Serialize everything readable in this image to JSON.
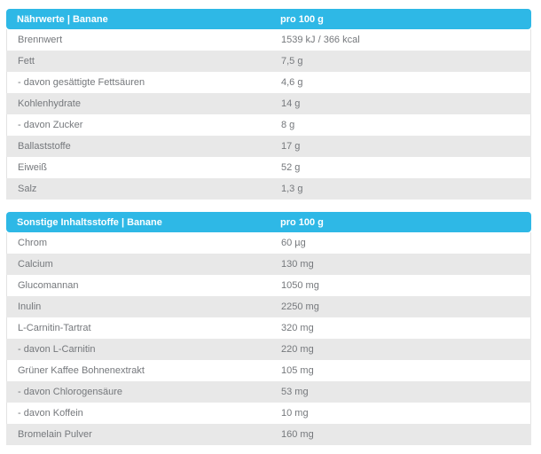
{
  "colors": {
    "header_bg": "#2eb8e6",
    "header_text": "#ffffff",
    "row_bg": "#ffffff",
    "row_alt_bg": "#e8e8e8",
    "row_border": "#e3e3e3",
    "text": "#75787c",
    "page_bg": "#ffffff"
  },
  "tables": [
    {
      "id": "naehrwerte",
      "title": "Nährwerte | Banane",
      "unit_header": "pro 100 g",
      "rows": [
        {
          "label": "Brennwert",
          "value": "1539 kJ / 366 kcal"
        },
        {
          "label": "Fett",
          "value": "7,5 g"
        },
        {
          "label": "- davon gesättigte Fettsäuren",
          "value": "4,6 g"
        },
        {
          "label": "Kohlenhydrate",
          "value": "14 g"
        },
        {
          "label": "- davon Zucker",
          "value": "8 g"
        },
        {
          "label": "Ballaststoffe",
          "value": "17 g"
        },
        {
          "label": "Eiweiß",
          "value": "52 g"
        },
        {
          "label": "Salz",
          "value": "1,3 g"
        }
      ]
    },
    {
      "id": "sonstige-inhaltsstoffe",
      "title": "Sonstige Inhaltsstoffe | Banane",
      "unit_header": "pro 100 g",
      "rows": [
        {
          "label": "Chrom",
          "value": "60 µg"
        },
        {
          "label": "Calcium",
          "value": "130 mg"
        },
        {
          "label": "Glucomannan",
          "value": "1050 mg"
        },
        {
          "label": "Inulin",
          "value": "2250 mg"
        },
        {
          "label": "L-Carnitin-Tartrat",
          "value": "320 mg"
        },
        {
          "label": "- davon L-Carnitin",
          "value": "220 mg"
        },
        {
          "label": "Grüner Kaffee Bohnenextrakt",
          "value": "105 mg"
        },
        {
          "label": "- davon Chlorogensäure",
          "value": "53 mg"
        },
        {
          "label": "- davon Koffein",
          "value": "10 mg"
        },
        {
          "label": "Bromelain Pulver",
          "value": "160 mg"
        }
      ]
    }
  ]
}
